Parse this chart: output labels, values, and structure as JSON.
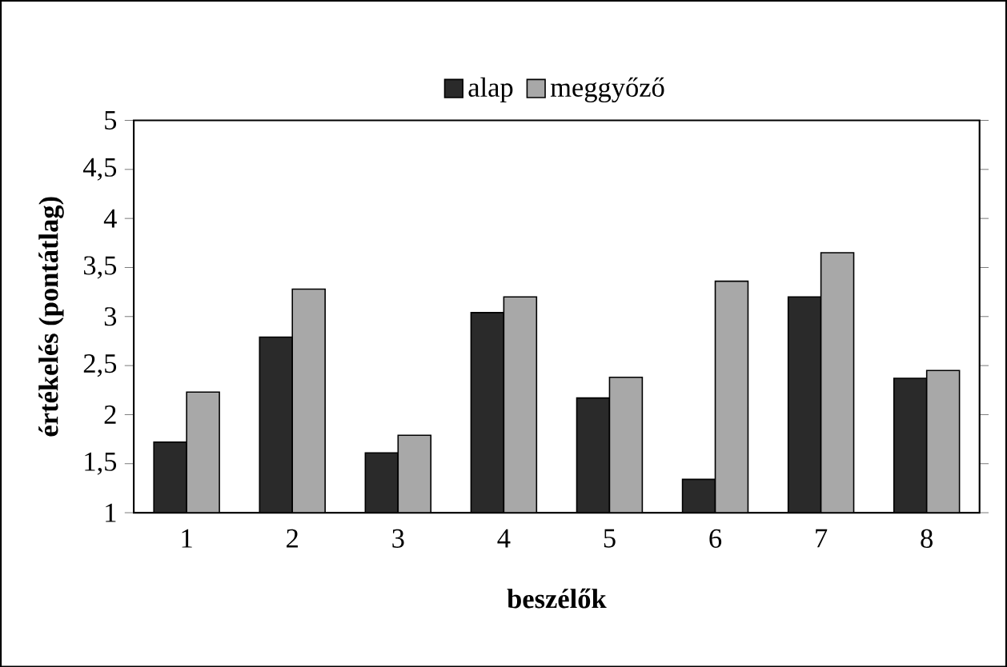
{
  "chart_data": {
    "type": "bar",
    "xlabel": "beszélők",
    "ylabel": "értékelés (pontátlag)",
    "categories": [
      "1",
      "2",
      "3",
      "4",
      "5",
      "6",
      "7",
      "8"
    ],
    "series": [
      {
        "name": "alap",
        "color": "#2a2a2a",
        "values": [
          1.72,
          2.79,
          1.61,
          3.04,
          2.17,
          1.34,
          3.2,
          2.37
        ]
      },
      {
        "name": "meggyőző",
        "color": "#a8a8a8",
        "values": [
          2.23,
          3.28,
          1.79,
          3.2,
          2.38,
          3.36,
          3.65,
          2.45
        ]
      }
    ],
    "ylim": [
      1,
      5
    ],
    "yticks": [
      1,
      {
        "value": 1.5,
        "label": "1,5"
      },
      2,
      {
        "value": 2.5,
        "label": "2,5"
      },
      3,
      {
        "value": 3.5,
        "label": "3,5"
      },
      4,
      {
        "value": 4.5,
        "label": "4,5"
      },
      5
    ],
    "legend": "top",
    "grid": false
  }
}
